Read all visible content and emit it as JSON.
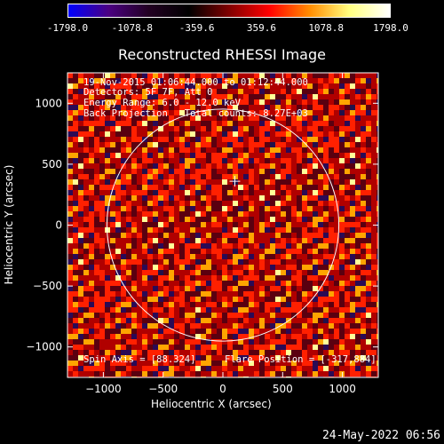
{
  "colorbar": {
    "labels": [
      "-1798.0",
      "-1078.8",
      "-359.6",
      "359.6",
      "1078.8",
      "1798.0"
    ],
    "colors": [
      "#0000ff",
      "#4b0082",
      "#220022",
      "#000000",
      "#800000",
      "#ff0000",
      "#ff8c00",
      "#ffff80",
      "#ffffff"
    ]
  },
  "chart_data": {
    "type": "heatmap",
    "title": "Reconstructed RHESSI Image",
    "xlabel": "Heliocentric X (arcsec)",
    "ylabel": "Heliocentric Y (arcsec)",
    "xlim": [
      -1300,
      1300
    ],
    "ylim": [
      -1250,
      1250
    ],
    "x_ticks": [
      -1000,
      -500,
      0,
      500,
      1000
    ],
    "y_ticks": [
      -1000,
      -500,
      0,
      500,
      1000
    ],
    "x_tick_labels": [
      "−1000",
      "−500",
      "0",
      "500",
      "1000"
    ],
    "y_tick_labels": [
      "−1000",
      "−500",
      "0",
      "500",
      "1000"
    ],
    "solar_limb_radius_arcsec": 970,
    "flare_position": [
      -317,
      884
    ],
    "center_marker": [
      100,
      360
    ],
    "value_range": [
      -1798.0,
      1798.0
    ]
  },
  "annotations": {
    "time_range": "19-Nov-2015 01:06:44.000 to 01:12:44.000",
    "detectors": "Detectors: 5F 7F, Att 0",
    "energy_range": "Energy Range: 6.0 - 12.0 keV",
    "method": "Back Projection   Total counts: 8.27E+03",
    "spin_axis": "Spin Axis = [88.324]",
    "flare_position": "Flare Position = [-317,884]"
  },
  "timestamp": "24-May-2022 06:56"
}
